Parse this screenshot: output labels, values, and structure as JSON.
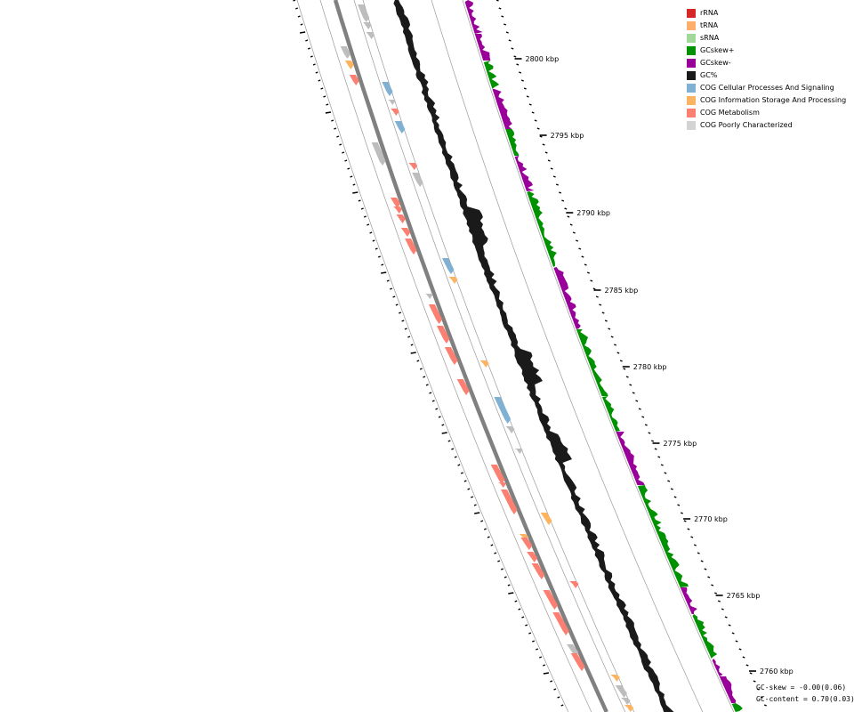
{
  "legend": [
    {
      "label": "rRNA",
      "color": "#d62728"
    },
    {
      "label": "tRNA",
      "color": "#fdae6b"
    },
    {
      "label": "sRNA",
      "color": "#a1d99b"
    },
    {
      "label": "GCskew+",
      "color": "#009100"
    },
    {
      "label": "GCskew-",
      "color": "#990099"
    },
    {
      "label": "GC%",
      "color": "#1a1a1a"
    },
    {
      "label": "COG Cellular Processes And Signaling",
      "color": "#80b1d3"
    },
    {
      "label": "COG Information Storage And Processing",
      "color": "#fdb462"
    },
    {
      "label": "COG Metabolism",
      "color": "#fb8072"
    },
    {
      "label": "COG Poorly Characterized",
      "color": "#d3d3d3"
    }
  ],
  "ruler": {
    "unit": "kbp",
    "ticks": [
      {
        "value": 2800,
        "label": "2800 kbp"
      },
      {
        "value": 2795,
        "label": "2795 kbp"
      },
      {
        "value": 2790,
        "label": "2790 kbp"
      },
      {
        "value": 2785,
        "label": "2785 kbp"
      },
      {
        "value": 2780,
        "label": "2780 kbp"
      },
      {
        "value": 2775,
        "label": "2775 kbp"
      },
      {
        "value": 2770,
        "label": "2770 kbp"
      },
      {
        "value": 2765,
        "label": "2765 kbp"
      },
      {
        "value": 2760,
        "label": "2760 kbp"
      }
    ]
  },
  "stats": {
    "gc_skew": "GC-skew = -0.00(0.06)",
    "gc_content": "GC-content = 0.70(0.03)"
  }
}
